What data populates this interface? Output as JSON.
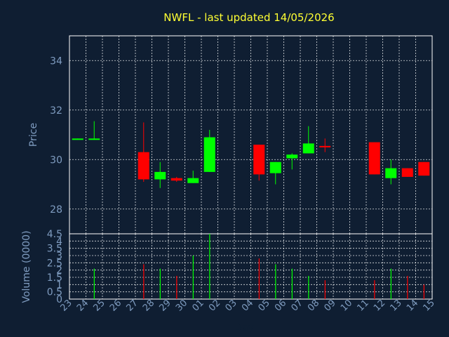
{
  "chart_data": {
    "type": "candlestick",
    "title": "NWFL - last updated 14/05/2026",
    "xlabel": "Day",
    "colors": {
      "up": "#00ff00",
      "down": "#ff0000",
      "background": "#0f1e32",
      "grid": "#ffffff",
      "text": "#7f9cc0",
      "title": "#ffff33"
    },
    "x_ticks": [
      "23",
      "24",
      "25",
      "26",
      "27",
      "28",
      "29",
      "30",
      "01",
      "02",
      "03",
      "04",
      "05",
      "06",
      "07",
      "08",
      "09",
      "10",
      "11",
      "12",
      "13",
      "14",
      "15"
    ],
    "price": {
      "ylabel": "Price",
      "ylim": [
        27,
        35
      ],
      "yticks": [
        "28",
        "30",
        "32",
        "34"
      ],
      "candles": [
        {
          "i": 0,
          "open": 30.8,
          "close": 30.85,
          "high": 30.85,
          "low": 30.8,
          "dir": "up"
        },
        {
          "i": 1,
          "open": 30.8,
          "close": 30.85,
          "high": 31.55,
          "low": 30.8,
          "dir": "up"
        },
        {
          "i": 4,
          "open": 30.3,
          "close": 29.2,
          "high": 31.5,
          "low": 29.1,
          "dir": "down"
        },
        {
          "i": 5,
          "open": 29.2,
          "close": 29.5,
          "high": 29.9,
          "low": 28.85,
          "dir": "up"
        },
        {
          "i": 6,
          "open": 29.25,
          "close": 29.15,
          "high": 29.3,
          "low": 29.1,
          "dir": "down"
        },
        {
          "i": 7,
          "open": 29.05,
          "close": 29.25,
          "high": 29.55,
          "low": 29.05,
          "dir": "up"
        },
        {
          "i": 8,
          "open": 29.5,
          "close": 30.9,
          "high": 31.2,
          "low": 29.5,
          "dir": "up"
        },
        {
          "i": 11,
          "open": 30.6,
          "close": 29.4,
          "high": 30.6,
          "low": 29.15,
          "dir": "down"
        },
        {
          "i": 12,
          "open": 29.45,
          "close": 29.9,
          "high": 29.9,
          "low": 29.0,
          "dir": "up"
        },
        {
          "i": 13,
          "open": 30.05,
          "close": 30.2,
          "high": 30.25,
          "low": 29.6,
          "dir": "up"
        },
        {
          "i": 14,
          "open": 30.25,
          "close": 30.65,
          "high": 31.35,
          "low": 30.25,
          "dir": "up"
        },
        {
          "i": 15,
          "open": 30.55,
          "close": 30.5,
          "high": 30.85,
          "low": 30.3,
          "dir": "down"
        },
        {
          "i": 18,
          "open": 30.7,
          "close": 29.4,
          "high": 30.7,
          "low": 29.4,
          "dir": "down"
        },
        {
          "i": 19,
          "open": 29.25,
          "close": 29.65,
          "high": 30.0,
          "low": 29.0,
          "dir": "up"
        },
        {
          "i": 20,
          "open": 29.65,
          "close": 29.3,
          "high": 29.65,
          "low": 29.3,
          "dir": "down"
        },
        {
          "i": 21,
          "open": 29.9,
          "close": 29.35,
          "high": 29.9,
          "low": 29.35,
          "dir": "down"
        }
      ]
    },
    "volume": {
      "ylabel": "Volume (0000)",
      "ylim": [
        0,
        4.5
      ],
      "yticks": [
        "0",
        "0.5",
        "1",
        "1.5",
        "2",
        "2.5",
        "3",
        "3.5",
        "4",
        "4.5"
      ],
      "bars": [
        {
          "i": 1,
          "value": 2.1,
          "dir": "up"
        },
        {
          "i": 4,
          "value": 2.4,
          "dir": "down"
        },
        {
          "i": 5,
          "value": 2.1,
          "dir": "up"
        },
        {
          "i": 6,
          "value": 1.6,
          "dir": "down"
        },
        {
          "i": 7,
          "value": 3.0,
          "dir": "up"
        },
        {
          "i": 8,
          "value": 4.5,
          "dir": "up"
        },
        {
          "i": 11,
          "value": 2.8,
          "dir": "down"
        },
        {
          "i": 12,
          "value": 2.4,
          "dir": "up"
        },
        {
          "i": 13,
          "value": 2.1,
          "dir": "up"
        },
        {
          "i": 14,
          "value": 1.6,
          "dir": "up"
        },
        {
          "i": 15,
          "value": 1.3,
          "dir": "down"
        },
        {
          "i": 18,
          "value": 1.3,
          "dir": "down"
        },
        {
          "i": 19,
          "value": 2.1,
          "dir": "up"
        },
        {
          "i": 20,
          "value": 1.6,
          "dir": "down"
        },
        {
          "i": 21,
          "value": 1.0,
          "dir": "down"
        }
      ]
    }
  }
}
